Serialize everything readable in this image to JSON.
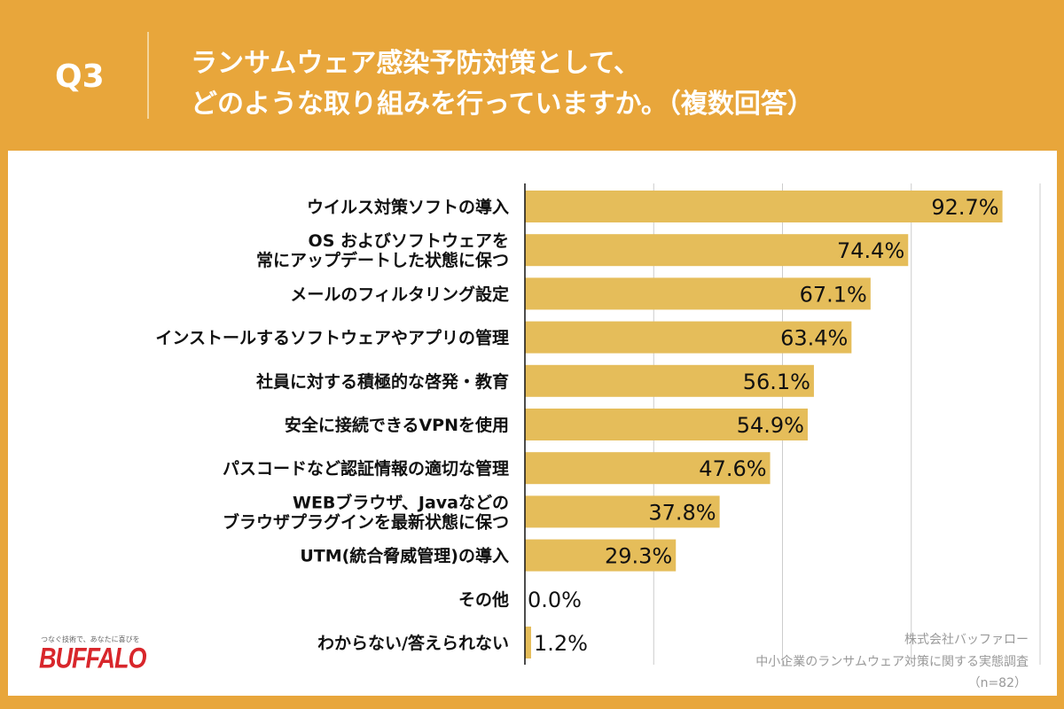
{
  "header": {
    "question": "Q3",
    "title_line1": "ランサムウェア感染予防対策として、",
    "title_line2": "どのような取り組みを行っていますか。（複数回答）"
  },
  "source": {
    "company": "株式会社バッファロー",
    "survey": "中小企業のランサムウェア対策に関する実態調査",
    "n": "（n=82）"
  },
  "logo": {
    "tagline": "つなぐ技術で、あなたに喜びを",
    "brand": "BUFFALO"
  },
  "colors": {
    "background": "#E8A63B",
    "bar": "#E5BD5A"
  },
  "chart_data": {
    "type": "bar",
    "orientation": "horizontal",
    "xlim": [
      0,
      100
    ],
    "grid": true,
    "gridlines": [
      25,
      50,
      75,
      100
    ],
    "categories": [
      [
        "ウイルス対策ソフトの導入"
      ],
      [
        "OS およびソフトウェアを",
        "常にアップデートした状態に保つ"
      ],
      [
        "メールのフィルタリング設定"
      ],
      [
        "インストールするソフトウェアやアプリの管理"
      ],
      [
        "社員に対する積極的な啓発・教育"
      ],
      [
        "安全に接続できるVPNを使用"
      ],
      [
        "パスコードなど認証情報の適切な管理"
      ],
      [
        "WEBブラウザ、Javaなどの",
        "ブラウザプラグインを最新状態に保つ"
      ],
      [
        "UTM(統合脅威管理)の導入"
      ],
      [
        "その他"
      ],
      [
        "わからない/答えられない"
      ]
    ],
    "values": [
      92.7,
      74.4,
      67.1,
      63.4,
      56.1,
      54.9,
      47.6,
      37.8,
      29.3,
      0.0,
      1.2
    ],
    "value_labels": [
      "92.7%",
      "74.4%",
      "67.1%",
      "63.4%",
      "56.1%",
      "54.9%",
      "47.6%",
      "37.8%",
      "29.3%",
      "0.0%",
      "1.2%"
    ]
  }
}
